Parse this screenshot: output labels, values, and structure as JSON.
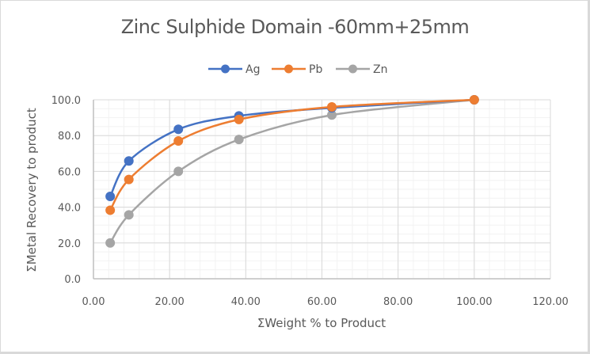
{
  "chart_data": {
    "type": "scatter",
    "subtype": "smooth-line-with-markers",
    "title": "Zinc Sulphide Domain -60mm+25mm",
    "xlabel": "ΣWeight % to Product",
    "ylabel": "ΣMetal Recovery to product",
    "xlim": [
      0,
      120
    ],
    "ylim": [
      0,
      100
    ],
    "x_ticks": [
      "0.00",
      "20.00",
      "40.00",
      "60.00",
      "80.00",
      "100.00",
      "120.00"
    ],
    "y_ticks": [
      "0.0",
      "20.0",
      "40.0",
      "60.0",
      "80.0",
      "100.0"
    ],
    "grid": {
      "major": true,
      "minor": true,
      "x_minor_step": 4,
      "y_minor_step": 5
    },
    "legend_position": "top",
    "series": [
      {
        "name": "Ag",
        "color": "#4472c4",
        "x": [
          4.4,
          9.3,
          22.3,
          38.2,
          62.6,
          100.0
        ],
        "y": [
          46.0,
          65.8,
          83.5,
          91.0,
          95.5,
          100.0
        ]
      },
      {
        "name": "Pb",
        "color": "#ed7d31",
        "x": [
          4.4,
          9.3,
          22.3,
          38.2,
          62.6,
          100.0
        ],
        "y": [
          38.3,
          55.5,
          77.0,
          89.0,
          96.0,
          100.0
        ]
      },
      {
        "name": "Zn",
        "color": "#a5a5a5",
        "x": [
          4.4,
          9.3,
          22.3,
          38.2,
          62.6,
          100.0
        ],
        "y": [
          20.0,
          35.7,
          60.0,
          77.8,
          91.5,
          100.0
        ]
      }
    ]
  }
}
